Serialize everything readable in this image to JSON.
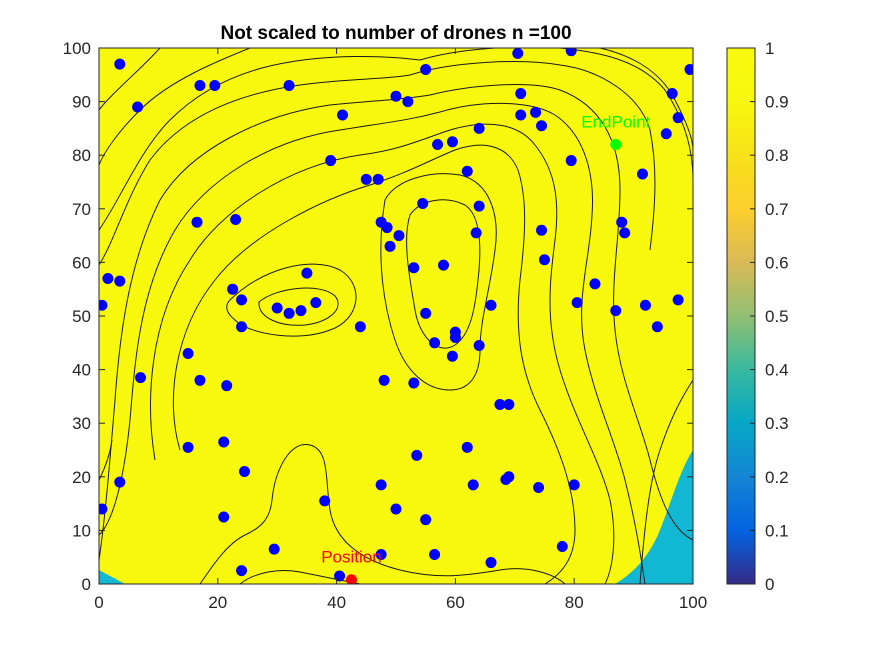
{
  "chart_data": {
    "type": "scatter",
    "title": "Not scaled to number of drones n =100",
    "xlabel": "",
    "ylabel": "",
    "xlim": [
      0,
      100
    ],
    "ylim": [
      0,
      100
    ],
    "xticks": [
      "0",
      "20",
      "40",
      "60",
      "80",
      "100"
    ],
    "yticks": [
      "0",
      "10",
      "20",
      "30",
      "40",
      "50",
      "60",
      "70",
      "80",
      "90",
      "100"
    ],
    "background_field": "contour map of values near 1 (yellow) with lower values (~0.4) in the bottom-right and bottom-left corners",
    "colorbar": {
      "ticks": [
        "0",
        "0.1",
        "0.2",
        "0.3",
        "0.4",
        "0.5",
        "0.6",
        "0.7",
        "0.8",
        "0.9",
        "1"
      ],
      "range": [
        0,
        1
      ],
      "colormap": "parula"
    },
    "drones": {
      "color": "#0000ff",
      "points": [
        [
          3.5,
          97
        ],
        [
          17,
          93
        ],
        [
          19.5,
          93
        ],
        [
          32,
          93
        ],
        [
          6.5,
          89
        ],
        [
          41,
          87.5
        ],
        [
          50,
          91
        ],
        [
          52,
          90
        ],
        [
          55,
          96
        ],
        [
          70.5,
          99
        ],
        [
          79.5,
          99.5
        ],
        [
          99.5,
          96
        ],
        [
          71,
          91.5
        ],
        [
          73.5,
          88
        ],
        [
          71,
          87.5
        ],
        [
          74.5,
          85.5
        ],
        [
          64,
          85
        ],
        [
          59.5,
          82.5
        ],
        [
          57,
          82
        ],
        [
          39,
          79
        ],
        [
          79.5,
          79
        ],
        [
          62,
          77
        ],
        [
          45,
          75.5
        ],
        [
          47,
          75.5
        ],
        [
          54.5,
          71
        ],
        [
          64,
          70.5
        ],
        [
          47.5,
          67.5
        ],
        [
          48.5,
          66.5
        ],
        [
          63.5,
          65.5
        ],
        [
          74.5,
          66
        ],
        [
          88,
          67.5
        ],
        [
          88.5,
          65.5
        ],
        [
          16.5,
          67.5
        ],
        [
          23,
          68
        ],
        [
          49,
          63
        ],
        [
          75,
          60.5
        ],
        [
          1.5,
          57
        ],
        [
          3.5,
          56.5
        ],
        [
          35,
          58
        ],
        [
          53,
          59
        ],
        [
          58,
          59.5
        ],
        [
          83.5,
          56
        ],
        [
          97.5,
          53
        ],
        [
          0.5,
          52
        ],
        [
          22.5,
          55
        ],
        [
          24,
          53
        ],
        [
          36.5,
          52.5
        ],
        [
          30,
          51.5
        ],
        [
          32,
          50.5
        ],
        [
          34,
          51
        ],
        [
          66,
          52
        ],
        [
          80.5,
          52.5
        ],
        [
          92,
          52
        ],
        [
          55,
          50.5
        ],
        [
          87,
          51
        ],
        [
          24,
          48
        ],
        [
          44,
          48
        ],
        [
          94,
          48
        ],
        [
          60,
          47
        ],
        [
          60,
          46
        ],
        [
          56.5,
          45
        ],
        [
          64,
          44.5
        ],
        [
          15,
          43
        ],
        [
          59.5,
          42.5
        ],
        [
          7,
          38.5
        ],
        [
          17,
          38
        ],
        [
          48,
          38
        ],
        [
          53,
          37.5
        ],
        [
          21.5,
          37
        ],
        [
          67.5,
          33.5
        ],
        [
          69,
          33.5
        ],
        [
          21,
          26.5
        ],
        [
          15,
          25.5
        ],
        [
          62,
          25.5
        ],
        [
          53.5,
          24
        ],
        [
          24.5,
          21
        ],
        [
          3.5,
          19
        ],
        [
          69,
          20
        ],
        [
          68.5,
          19.5
        ],
        [
          47.5,
          18.5
        ],
        [
          63,
          18.5
        ],
        [
          74,
          18
        ],
        [
          80,
          18.5
        ],
        [
          38,
          15.5
        ],
        [
          0.5,
          14
        ],
        [
          50,
          14
        ],
        [
          21,
          12.5
        ],
        [
          55,
          12
        ],
        [
          78,
          7
        ],
        [
          29.5,
          6.5
        ],
        [
          47.5,
          5.5
        ],
        [
          56.5,
          5.5
        ],
        [
          66,
          4
        ],
        [
          24,
          2.5
        ],
        [
          40.5,
          1.5
        ],
        [
          95.5,
          84
        ],
        [
          97.5,
          87
        ],
        [
          91.5,
          76.5
        ],
        [
          96.5,
          91.5
        ],
        [
          50.5,
          65
        ]
      ]
    },
    "markers": [
      {
        "label": "EndPoint",
        "x": 87,
        "y": 82,
        "color": "#00ff00"
      },
      {
        "label": "Position",
        "x": 42.5,
        "y": 0.8,
        "color": "#ff0000"
      }
    ],
    "colors": {
      "field": "#f8f80e",
      "low_region": "#12b8d3",
      "drone": "#0000ff",
      "end_point": "#00ff00",
      "position": "#ff0000"
    }
  }
}
